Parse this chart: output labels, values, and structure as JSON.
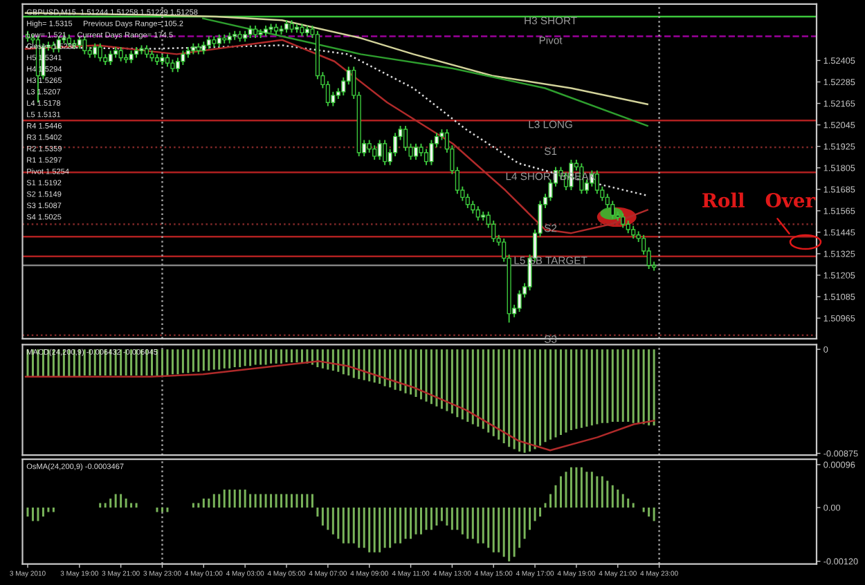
{
  "chart_data": [
    {
      "type": "candlestick",
      "x": [
        "2010-05-03T16:30",
        "2010-05-03T16:45",
        "2010-05-03T17:00",
        "2010-05-03T17:15",
        "2010-05-03T17:30",
        "2010-05-03T17:45",
        "2010-05-03T18:00",
        "2010-05-03T18:15",
        "2010-05-03T18:30",
        "2010-05-03T18:45",
        "2010-05-03T19:00",
        "2010-05-03T19:15",
        "2010-05-03T19:30",
        "2010-05-03T19:45",
        "2010-05-03T20:00",
        "2010-05-03T20:15",
        "2010-05-03T20:30",
        "2010-05-03T20:45",
        "2010-05-03T21:00",
        "2010-05-03T21:15",
        "2010-05-03T21:30",
        "2010-05-03T21:45",
        "2010-05-03T22:00",
        "2010-05-03T22:15",
        "2010-05-03T22:30",
        "2010-05-03T22:45",
        "2010-05-03T23:00",
        "2010-05-03T23:15",
        "2010-05-03T23:30",
        "2010-05-03T23:45",
        "2010-05-04T00:00",
        "2010-05-04T00:15",
        "2010-05-04T00:30",
        "2010-05-04T00:45",
        "2010-05-04T01:00",
        "2010-05-04T01:15",
        "2010-05-04T01:30",
        "2010-05-04T01:45",
        "2010-05-04T02:00",
        "2010-05-04T02:15",
        "2010-05-04T02:30",
        "2010-05-04T02:45",
        "2010-05-04T03:00",
        "2010-05-04T03:15",
        "2010-05-04T03:30",
        "2010-05-04T03:45",
        "2010-05-04T04:00",
        "2010-05-04T04:15",
        "2010-05-04T04:30",
        "2010-05-04T04:45",
        "2010-05-04T05:00",
        "2010-05-04T05:15",
        "2010-05-04T05:30",
        "2010-05-04T05:45",
        "2010-05-04T06:00",
        "2010-05-04T06:15",
        "2010-05-04T06:30",
        "2010-05-04T06:45",
        "2010-05-04T07:00",
        "2010-05-04T07:15",
        "2010-05-04T07:30",
        "2010-05-04T07:45",
        "2010-05-04T08:00",
        "2010-05-04T08:15",
        "2010-05-04T08:30",
        "2010-05-04T08:45",
        "2010-05-04T09:00",
        "2010-05-04T09:15",
        "2010-05-04T09:30",
        "2010-05-04T09:45",
        "2010-05-04T10:00",
        "2010-05-04T10:15",
        "2010-05-04T10:30",
        "2010-05-04T10:45",
        "2010-05-04T11:00",
        "2010-05-04T11:15",
        "2010-05-04T11:30",
        "2010-05-04T11:45",
        "2010-05-04T12:00",
        "2010-05-04T12:15",
        "2010-05-04T12:30",
        "2010-05-04T12:45",
        "2010-05-04T13:00",
        "2010-05-04T13:15",
        "2010-05-04T13:30",
        "2010-05-04T13:45",
        "2010-05-04T14:00",
        "2010-05-04T14:15",
        "2010-05-04T14:30",
        "2010-05-04T14:45",
        "2010-05-04T15:00",
        "2010-05-04T15:15",
        "2010-05-04T15:30",
        "2010-05-04T15:45",
        "2010-05-04T16:00",
        "2010-05-04T16:15",
        "2010-05-04T16:30",
        "2010-05-04T16:45",
        "2010-05-04T17:00",
        "2010-05-04T17:15",
        "2010-05-04T17:30",
        "2010-05-04T17:45",
        "2010-05-04T18:00",
        "2010-05-04T18:15",
        "2010-05-04T18:30",
        "2010-05-04T18:45",
        "2010-05-04T19:00",
        "2010-05-04T19:15",
        "2010-05-04T19:30",
        "2010-05-04T19:45",
        "2010-05-04T20:00",
        "2010-05-04T20:15",
        "2010-05-04T20:30",
        "2010-05-04T20:45",
        "2010-05-04T21:00",
        "2010-05-04T21:15",
        "2010-05-04T21:30",
        "2010-05-04T21:45",
        "2010-05-04T22:00",
        "2010-05-04T22:15",
        "2010-05-04T22:30",
        "2010-05-04T22:45"
      ],
      "ohlc": [
        [
          1.5255,
          1.5257,
          1.5251,
          1.5253
        ],
        [
          1.5253,
          1.5255,
          1.525,
          1.5252
        ],
        [
          1.5252,
          1.5254,
          1.5217,
          1.5232
        ],
        [
          1.5232,
          1.525,
          1.523,
          1.5248
        ],
        [
          1.5248,
          1.5251,
          1.5246,
          1.5249
        ],
        [
          1.5249,
          1.5251,
          1.5245,
          1.5247
        ],
        [
          1.5247,
          1.5254,
          1.5245,
          1.5252
        ],
        [
          1.5252,
          1.5255,
          1.525,
          1.5253
        ],
        [
          1.5253,
          1.5255,
          1.5248,
          1.525
        ],
        [
          1.525,
          1.5252,
          1.5247,
          1.5249
        ],
        [
          1.5249,
          1.5254,
          1.5247,
          1.5252
        ],
        [
          1.5252,
          1.5254,
          1.5244,
          1.5246
        ],
        [
          1.5246,
          1.5248,
          1.5242,
          1.5244
        ],
        [
          1.5244,
          1.525,
          1.5242,
          1.5248
        ],
        [
          1.5248,
          1.525,
          1.524,
          1.5242
        ],
        [
          1.5242,
          1.5244,
          1.5238,
          1.524
        ],
        [
          1.524,
          1.5246,
          1.5238,
          1.5244
        ],
        [
          1.5244,
          1.5248,
          1.5242,
          1.5246
        ],
        [
          1.5246,
          1.5248,
          1.524,
          1.5242
        ],
        [
          1.5242,
          1.5244,
          1.5239,
          1.5241
        ],
        [
          1.5241,
          1.5246,
          1.5239,
          1.5244
        ],
        [
          1.5244,
          1.5248,
          1.5242,
          1.5246
        ],
        [
          1.5246,
          1.5249,
          1.5244,
          1.5247
        ],
        [
          1.5247,
          1.5249,
          1.5242,
          1.5244
        ],
        [
          1.5244,
          1.5246,
          1.524,
          1.5242
        ],
        [
          1.5242,
          1.5244,
          1.5238,
          1.524
        ],
        [
          1.524,
          1.5244,
          1.5238,
          1.5242
        ],
        [
          1.5242,
          1.5244,
          1.5237,
          1.5239
        ],
        [
          1.5239,
          1.5241,
          1.5234,
          1.5236
        ],
        [
          1.5236,
          1.5242,
          1.5234,
          1.524
        ],
        [
          1.524,
          1.5246,
          1.5238,
          1.5244
        ],
        [
          1.5244,
          1.5248,
          1.5242,
          1.5246
        ],
        [
          1.5246,
          1.525,
          1.5244,
          1.5248
        ],
        [
          1.5248,
          1.525,
          1.5244,
          1.5246
        ],
        [
          1.5246,
          1.5251,
          1.5244,
          1.5249
        ],
        [
          1.5249,
          1.5254,
          1.5247,
          1.5252
        ],
        [
          1.5252,
          1.5254,
          1.5248,
          1.525
        ],
        [
          1.525,
          1.5255,
          1.5248,
          1.5253
        ],
        [
          1.5253,
          1.5255,
          1.525,
          1.5252
        ],
        [
          1.5252,
          1.5256,
          1.525,
          1.5254
        ],
        [
          1.5254,
          1.5257,
          1.5252,
          1.5255
        ],
        [
          1.5255,
          1.5257,
          1.5251,
          1.5253
        ],
        [
          1.5253,
          1.5257,
          1.5251,
          1.5255
        ],
        [
          1.5255,
          1.526,
          1.5253,
          1.5258
        ],
        [
          1.5258,
          1.526,
          1.5253,
          1.5255
        ],
        [
          1.5255,
          1.5258,
          1.5253,
          1.5256
        ],
        [
          1.5256,
          1.526,
          1.5254,
          1.5258
        ],
        [
          1.5258,
          1.5261,
          1.5256,
          1.5259
        ],
        [
          1.5259,
          1.5261,
          1.5255,
          1.5257
        ],
        [
          1.5257,
          1.526,
          1.5255,
          1.5258
        ],
        [
          1.5258,
          1.5263,
          1.5256,
          1.5261
        ],
        [
          1.5261,
          1.5263,
          1.5256,
          1.5258
        ],
        [
          1.5258,
          1.5261,
          1.5256,
          1.5259
        ],
        [
          1.5259,
          1.5261,
          1.5254,
          1.5256
        ],
        [
          1.5256,
          1.526,
          1.5254,
          1.5258
        ],
        [
          1.5258,
          1.526,
          1.5253,
          1.5255
        ],
        [
          1.5255,
          1.5257,
          1.523,
          1.5232
        ],
        [
          1.5232,
          1.5234,
          1.5225,
          1.5227
        ],
        [
          1.5227,
          1.5229,
          1.5215,
          1.5217
        ],
        [
          1.5217,
          1.5223,
          1.5215,
          1.5221
        ],
        [
          1.5221,
          1.5225,
          1.5219,
          1.5223
        ],
        [
          1.5223,
          1.5231,
          1.5221,
          1.5229
        ],
        [
          1.5229,
          1.5237,
          1.5227,
          1.5235
        ],
        [
          1.5235,
          1.5237,
          1.5219,
          1.5221
        ],
        [
          1.5221,
          1.5223,
          1.5187,
          1.5189
        ],
        [
          1.5189,
          1.5196,
          1.5187,
          1.5194
        ],
        [
          1.5194,
          1.5196,
          1.5189,
          1.5191
        ],
        [
          1.5191,
          1.5193,
          1.5185,
          1.5187
        ],
        [
          1.5187,
          1.5196,
          1.5185,
          1.5194
        ],
        [
          1.5194,
          1.5196,
          1.5182,
          1.5184
        ],
        [
          1.5184,
          1.5191,
          1.5182,
          1.5189
        ],
        [
          1.5189,
          1.52,
          1.5187,
          1.5198
        ],
        [
          1.5198,
          1.5204,
          1.5196,
          1.5202
        ],
        [
          1.5202,
          1.5204,
          1.519,
          1.5192
        ],
        [
          1.5192,
          1.5194,
          1.5185,
          1.5187
        ],
        [
          1.5187,
          1.5194,
          1.5185,
          1.5192
        ],
        [
          1.5192,
          1.5194,
          1.5187,
          1.5189
        ],
        [
          1.5189,
          1.5191,
          1.5182,
          1.5184
        ],
        [
          1.5184,
          1.5196,
          1.5182,
          1.5194
        ],
        [
          1.5194,
          1.52,
          1.5192,
          1.5198
        ],
        [
          1.5198,
          1.5202,
          1.5196,
          1.52
        ],
        [
          1.52,
          1.5202,
          1.5189,
          1.5191
        ],
        [
          1.5191,
          1.5193,
          1.5177,
          1.5179
        ],
        [
          1.5179,
          1.5181,
          1.5166,
          1.5168
        ],
        [
          1.5168,
          1.517,
          1.5162,
          1.5164
        ],
        [
          1.5164,
          1.5166,
          1.5158,
          1.516
        ],
        [
          1.516,
          1.5162,
          1.5155,
          1.5157
        ],
        [
          1.5157,
          1.5159,
          1.5151,
          1.5153
        ],
        [
          1.5153,
          1.5156,
          1.5151,
          1.5154
        ],
        [
          1.5154,
          1.5156,
          1.5147,
          1.5149
        ],
        [
          1.5149,
          1.5151,
          1.5139,
          1.5141
        ],
        [
          1.5141,
          1.5143,
          1.5137,
          1.5139
        ],
        [
          1.5139,
          1.5141,
          1.5128,
          1.513
        ],
        [
          1.513,
          1.5132,
          1.5094,
          1.5099
        ],
        [
          1.5099,
          1.5104,
          1.5097,
          1.5102
        ],
        [
          1.5102,
          1.5112,
          1.51,
          1.511
        ],
        [
          1.511,
          1.5116,
          1.5108,
          1.5114
        ],
        [
          1.5114,
          1.5132,
          1.5112,
          1.513
        ],
        [
          1.513,
          1.5146,
          1.5128,
          1.5144
        ],
        [
          1.5144,
          1.5162,
          1.5142,
          1.516
        ],
        [
          1.516,
          1.5166,
          1.5158,
          1.5164
        ],
        [
          1.5164,
          1.5174,
          1.5162,
          1.5172
        ],
        [
          1.5172,
          1.5181,
          1.517,
          1.5179
        ],
        [
          1.5179,
          1.5181,
          1.5174,
          1.5176
        ],
        [
          1.5176,
          1.5178,
          1.5168,
          1.517
        ],
        [
          1.517,
          1.5185,
          1.5168,
          1.5183
        ],
        [
          1.5183,
          1.5185,
          1.5179,
          1.5181
        ],
        [
          1.5181,
          1.5183,
          1.5166,
          1.5168
        ],
        [
          1.5168,
          1.5174,
          1.5166,
          1.5172
        ],
        [
          1.5172,
          1.5179,
          1.517,
          1.5177
        ],
        [
          1.5177,
          1.5179,
          1.5166,
          1.5168
        ],
        [
          1.5168,
          1.517,
          1.5162,
          1.5164
        ],
        [
          1.5164,
          1.5166,
          1.5158,
          1.516
        ],
        [
          1.516,
          1.5162,
          1.5152,
          1.5154
        ],
        [
          1.5154,
          1.5156,
          1.5151,
          1.5153
        ],
        [
          1.5153,
          1.5155,
          1.5147,
          1.5149
        ],
        [
          1.5149,
          1.5151,
          1.5144,
          1.5146
        ],
        [
          1.5146,
          1.5148,
          1.5141,
          1.5143
        ],
        [
          1.5143,
          1.5145,
          1.5139,
          1.5141
        ],
        [
          1.5141,
          1.5143,
          1.5132,
          1.5134
        ],
        [
          1.5134,
          1.5136,
          1.5124,
          1.5126
        ],
        [
          1.5126,
          1.5128,
          1.5123,
          1.5125
        ]
      ],
      "series": [
        {
          "type": "line",
          "color": "#d2d29a",
          "x": [
            "2010-05-03T16:24",
            "2010-05-03T22:26",
            "2010-05-04T01:36",
            "2010-05-04T04:47",
            "2010-05-04T08:35",
            "2010-05-04T11:08",
            "2010-05-04T14:56",
            "2010-05-04T18:45",
            "2010-05-04T22:26"
          ],
          "values": [
            1.5267,
            1.5266,
            1.5265,
            1.5263,
            1.5253,
            1.5244,
            1.5232,
            1.5225,
            1.5216
          ]
        },
        {
          "type": "line",
          "color": "#2e9e2e",
          "x": [
            "2010-05-04T00:58",
            "2010-05-04T04:47",
            "2010-05-04T08:35",
            "2010-05-04T13:02",
            "2010-05-04T17:29",
            "2010-05-04T22:26"
          ],
          "values": [
            1.5264,
            1.5254,
            1.5244,
            1.5236,
            1.5225,
            1.5204
          ]
        },
        {
          "type": "line",
          "color": "#dcdcdc",
          "line_style": "dotted",
          "x": [
            "2010-05-03T16:24",
            "2010-05-03T22:26",
            "2010-05-04T04:47",
            "2010-05-04T07:57",
            "2010-05-04T11:08",
            "2010-05-04T13:40",
            "2010-05-04T16:13",
            "2010-05-04T18:45",
            "2010-05-04T22:26"
          ],
          "values": [
            1.5248,
            1.5247,
            1.5249,
            1.5244,
            1.5225,
            1.5202,
            1.5183,
            1.5175,
            1.5165
          ]
        },
        {
          "type": "line",
          "color": "#b02a2a",
          "x": [
            "2010-05-03T16:24",
            "2010-05-03T19:53",
            "2010-05-03T23:42",
            "2010-05-04T04:47",
            "2010-05-04T07:19",
            "2010-05-04T09:52",
            "2010-05-04T13:02",
            "2010-05-04T15:34",
            "2010-05-04T17:29",
            "2010-05-04T18:45",
            "2010-05-04T20:39",
            "2010-05-04T22:26"
          ],
          "values": [
            1.5247,
            1.5249,
            1.5244,
            1.5252,
            1.524,
            1.5217,
            1.5194,
            1.5168,
            1.5146,
            1.5144,
            1.5149,
            1.5157
          ]
        }
      ],
      "ref_lines": [
        {
          "axis": "y",
          "value": 1.5265,
          "label": "H3 SHORT",
          "color": "#3cc83c"
        },
        {
          "axis": "y",
          "value": 1.5254,
          "label": "Pivot",
          "color": "#9a009a",
          "line_style": "dashed"
        },
        {
          "axis": "y",
          "value": 1.5207,
          "label": "L3 LONG",
          "color": "#b02020"
        },
        {
          "axis": "y",
          "value": 1.5192,
          "label": "S1",
          "color": "#802828",
          "line_style": "dotted"
        },
        {
          "axis": "y",
          "value": 1.5178,
          "label": "L4 SHORT BREAK",
          "color": "#b02020"
        },
        {
          "axis": "y",
          "value": 1.5149,
          "label": "S2",
          "color": "#802828",
          "line_style": "dotted"
        },
        {
          "axis": "y",
          "value": 1.5142,
          "color": "#b02020"
        },
        {
          "axis": "y",
          "value": 1.5131,
          "label": "L5 SB TARGET",
          "color": "#b02020"
        },
        {
          "axis": "y",
          "value": 1.5126,
          "color": "#808080"
        },
        {
          "axis": "y",
          "value": 1.5087,
          "label": "S3",
          "color": "#802828",
          "line_style": "dotted"
        },
        {
          "axis": "x",
          "value": "2010-05-03T23:00",
          "color": "#a0a0a0",
          "line_style": "dotted"
        },
        {
          "axis": "x",
          "value": "2010-05-04T23:00",
          "color": "#a0a0a0",
          "line_style": "dotted"
        }
      ],
      "annotations": [
        "GBPUSD,M15  1.51244 1.51258 1.51229 1.51258",
        "High= 1.5315     Previous Days Range= 105.2",
        "Low= 1.521     Current Days Range= 174.5",
        "Close= 1.5236",
        "H5 1.5341",
        "H4 1.5294",
        "H3 1.5265",
        "L3 1.5207",
        "L4 1.5178",
        "L5 1.5131",
        "R4 1.5446",
        "R3 1.5402",
        "R2 1.5359",
        "R1 1.5297",
        "Pivot 1.5254",
        "S1 1.5192",
        "S2 1.5149",
        "S3 1.5087",
        "S4 1.5025",
        "Roll   Over"
      ],
      "xlim": [
        "2010-05-03T16:15",
        "2010-05-05T06:36"
      ],
      "ylim": [
        1.5085,
        1.5272
      ],
      "yticks": [
        1.50965,
        1.51085,
        1.51205,
        1.51325,
        1.51445,
        1.51565,
        1.51685,
        1.51805,
        1.51925,
        1.52045,
        1.52165,
        1.52285,
        1.52405
      ],
      "tick_labels": "y",
      "legend": false,
      "grid": false
    },
    {
      "type": "bar",
      "x": [
        "2010-05-03T16:30",
        "2010-05-03T16:45",
        "2010-05-03T17:00",
        "2010-05-03T17:15",
        "2010-05-03T17:30",
        "2010-05-03T17:45",
        "2010-05-03T18:00",
        "2010-05-03T18:15",
        "2010-05-03T18:30",
        "2010-05-03T18:45",
        "2010-05-03T19:00",
        "2010-05-03T19:15",
        "2010-05-03T19:30",
        "2010-05-03T19:45",
        "2010-05-03T20:00",
        "2010-05-03T20:15",
        "2010-05-03T20:30",
        "2010-05-03T20:45",
        "2010-05-03T21:00",
        "2010-05-03T21:15",
        "2010-05-03T21:30",
        "2010-05-03T21:45",
        "2010-05-03T22:00",
        "2010-05-03T22:15",
        "2010-05-03T22:30",
        "2010-05-03T22:45",
        "2010-05-03T23:00",
        "2010-05-03T23:15",
        "2010-05-03T23:30",
        "2010-05-03T23:45",
        "2010-05-04T00:00",
        "2010-05-04T00:15",
        "2010-05-04T00:30",
        "2010-05-04T00:45",
        "2010-05-04T01:00",
        "2010-05-04T01:15",
        "2010-05-04T01:30",
        "2010-05-04T01:45",
        "2010-05-04T02:00",
        "2010-05-04T02:15",
        "2010-05-04T02:30",
        "2010-05-04T02:45",
        "2010-05-04T03:00",
        "2010-05-04T03:15",
        "2010-05-04T03:30",
        "2010-05-04T03:45",
        "2010-05-04T04:00",
        "2010-05-04T04:15",
        "2010-05-04T04:30",
        "2010-05-04T04:45",
        "2010-05-04T05:00",
        "2010-05-04T05:15",
        "2010-05-04T05:30",
        "2010-05-04T05:45",
        "2010-05-04T06:00",
        "2010-05-04T06:15",
        "2010-05-04T06:30",
        "2010-05-04T06:45",
        "2010-05-04T07:00",
        "2010-05-04T07:15",
        "2010-05-04T07:30",
        "2010-05-04T07:45",
        "2010-05-04T08:00",
        "2010-05-04T08:15",
        "2010-05-04T08:30",
        "2010-05-04T08:45",
        "2010-05-04T09:00",
        "2010-05-04T09:15",
        "2010-05-04T09:30",
        "2010-05-04T09:45",
        "2010-05-04T10:00",
        "2010-05-04T10:15",
        "2010-05-04T10:30",
        "2010-05-04T10:45",
        "2010-05-04T11:00",
        "2010-05-04T11:15",
        "2010-05-04T11:30",
        "2010-05-04T11:45",
        "2010-05-04T12:00",
        "2010-05-04T12:15",
        "2010-05-04T12:30",
        "2010-05-04T12:45",
        "2010-05-04T13:00",
        "2010-05-04T13:15",
        "2010-05-04T13:30",
        "2010-05-04T13:45",
        "2010-05-04T14:00",
        "2010-05-04T14:15",
        "2010-05-04T14:30",
        "2010-05-04T14:45",
        "2010-05-04T15:00",
        "2010-05-04T15:15",
        "2010-05-04T15:30",
        "2010-05-04T15:45",
        "2010-05-04T16:00",
        "2010-05-04T16:15",
        "2010-05-04T16:30",
        "2010-05-04T16:45",
        "2010-05-04T17:00",
        "2010-05-04T17:15",
        "2010-05-04T17:30",
        "2010-05-04T17:45",
        "2010-05-04T18:00",
        "2010-05-04T18:15",
        "2010-05-04T18:30",
        "2010-05-04T18:45",
        "2010-05-04T19:00",
        "2010-05-04T19:15",
        "2010-05-04T19:30",
        "2010-05-04T19:45",
        "2010-05-04T20:00",
        "2010-05-04T20:15",
        "2010-05-04T20:30",
        "2010-05-04T20:45",
        "2010-05-04T21:00",
        "2010-05-04T21:15",
        "2010-05-04T21:30",
        "2010-05-04T21:45",
        "2010-05-04T22:00",
        "2010-05-04T22:15",
        "2010-05-04T22:30",
        "2010-05-04T22:45"
      ],
      "series": [
        {
          "type": "bar",
          "color": "#79b45a",
          "values": [
            -0.0023,
            -0.0023,
            -0.0023,
            -0.0023,
            -0.0023,
            -0.0023,
            -0.0023,
            -0.0023,
            -0.0023,
            -0.0023,
            -0.0023,
            -0.0022,
            -0.0022,
            -0.0022,
            -0.0022,
            -0.0022,
            -0.0022,
            -0.0022,
            -0.0022,
            -0.0022,
            -0.0022,
            -0.0022,
            -0.0022,
            -0.0022,
            -0.0022,
            -0.0022,
            -0.0022,
            -0.0022,
            -0.0021,
            -0.0021,
            -0.002,
            -0.002,
            -0.0019,
            -0.0019,
            -0.0018,
            -0.0018,
            -0.0017,
            -0.0017,
            -0.0016,
            -0.0016,
            -0.0015,
            -0.0015,
            -0.0014,
            -0.0014,
            -0.0013,
            -0.0013,
            -0.0013,
            -0.0012,
            -0.0012,
            -0.0012,
            -0.0011,
            -0.0011,
            -0.0011,
            -0.0012,
            -0.0012,
            -0.0013,
            -0.0015,
            -0.0016,
            -0.0017,
            -0.0018,
            -0.0019,
            -0.0021,
            -0.0022,
            -0.0024,
            -0.0025,
            -0.0026,
            -0.0027,
            -0.0028,
            -0.0029,
            -0.0031,
            -0.0032,
            -0.0034,
            -0.0035,
            -0.0037,
            -0.0038,
            -0.004,
            -0.0042,
            -0.0044,
            -0.0046,
            -0.0048,
            -0.005,
            -0.0052,
            -0.0054,
            -0.0057,
            -0.0059,
            -0.0061,
            -0.0063,
            -0.0065,
            -0.0067,
            -0.007,
            -0.0073,
            -0.0076,
            -0.0079,
            -0.0082,
            -0.0084,
            -0.0086,
            -0.0087,
            -0.0086,
            -0.0084,
            -0.0081,
            -0.0078,
            -0.0076,
            -0.0074,
            -0.0072,
            -0.007,
            -0.0068,
            -0.0067,
            -0.0066,
            -0.0065,
            -0.0064,
            -0.0063,
            -0.0062,
            -0.0062,
            -0.0061,
            -0.0061,
            -0.0061,
            -0.0061,
            -0.0062,
            -0.0062,
            -0.0063,
            -0.0064,
            -0.0064
          ]
        },
        {
          "type": "line",
          "color": "#b02a2a",
          "x": [
            "2010-05-03T16:24",
            "2010-05-03T22:26",
            "2010-05-04T00:58",
            "2010-05-04T06:34",
            "2010-05-04T07:57",
            "2010-05-04T11:08",
            "2010-05-04T13:40",
            "2010-05-04T16:13",
            "2010-05-04T17:44",
            "2010-05-04T20:01",
            "2010-05-04T21:47",
            "2010-05-04T22:45"
          ],
          "values": [
            -0.0023,
            -0.0023,
            -0.0021,
            -0.001,
            -0.0014,
            -0.0032,
            -0.0051,
            -0.0077,
            -0.0085,
            -0.0074,
            -0.0063,
            -0.006
          ]
        }
      ],
      "ref_lines": [
        {
          "axis": "x",
          "value": "2010-05-03T23:00",
          "color": "#a0a0a0",
          "line_style": "dotted"
        },
        {
          "axis": "x",
          "value": "2010-05-04T23:00",
          "color": "#a0a0a0",
          "line_style": "dotted"
        }
      ],
      "annotations": [
        "MACD(24,200,9) -0.006432 -0.006045"
      ],
      "xlim": [
        "2010-05-03T16:15",
        "2010-05-05T06:36"
      ],
      "ylim": [
        -0.0089,
        0.0004
      ],
      "yticks": [
        {
          "value": 0,
          "label": "0"
        },
        {
          "value": -0.00875,
          "label": "-0.00875"
        }
      ],
      "tick_labels": "y",
      "legend": false,
      "grid": false
    },
    {
      "type": "bar",
      "x": [
        "2010-05-03T16:30",
        "2010-05-03T16:45",
        "2010-05-03T17:00",
        "2010-05-03T17:15",
        "2010-05-03T17:30",
        "2010-05-03T17:45",
        "2010-05-03T18:00",
        "2010-05-03T18:15",
        "2010-05-03T18:30",
        "2010-05-03T18:45",
        "2010-05-03T19:00",
        "2010-05-03T19:15",
        "2010-05-03T19:30",
        "2010-05-03T19:45",
        "2010-05-03T20:00",
        "2010-05-03T20:15",
        "2010-05-03T20:30",
        "2010-05-03T20:45",
        "2010-05-03T21:00",
        "2010-05-03T21:15",
        "2010-05-03T21:30",
        "2010-05-03T21:45",
        "2010-05-03T22:00",
        "2010-05-03T22:15",
        "2010-05-03T22:30",
        "2010-05-03T22:45",
        "2010-05-03T23:00",
        "2010-05-03T23:15",
        "2010-05-03T23:30",
        "2010-05-03T23:45",
        "2010-05-04T00:00",
        "2010-05-04T00:15",
        "2010-05-04T00:30",
        "2010-05-04T00:45",
        "2010-05-04T01:00",
        "2010-05-04T01:15",
        "2010-05-04T01:30",
        "2010-05-04T01:45",
        "2010-05-04T02:00",
        "2010-05-04T02:15",
        "2010-05-04T02:30",
        "2010-05-04T02:45",
        "2010-05-04T03:00",
        "2010-05-04T03:15",
        "2010-05-04T03:30",
        "2010-05-04T03:45",
        "2010-05-04T04:00",
        "2010-05-04T04:15",
        "2010-05-04T04:30",
        "2010-05-04T04:45",
        "2010-05-04T05:00",
        "2010-05-04T05:15",
        "2010-05-04T05:30",
        "2010-05-04T05:45",
        "2010-05-04T06:00",
        "2010-05-04T06:15",
        "2010-05-04T06:30",
        "2010-05-04T06:45",
        "2010-05-04T07:00",
        "2010-05-04T07:15",
        "2010-05-04T07:30",
        "2010-05-04T07:45",
        "2010-05-04T08:00",
        "2010-05-04T08:15",
        "2010-05-04T08:30",
        "2010-05-04T08:45",
        "2010-05-04T09:00",
        "2010-05-04T09:15",
        "2010-05-04T09:30",
        "2010-05-04T09:45",
        "2010-05-04T10:00",
        "2010-05-04T10:15",
        "2010-05-04T10:30",
        "2010-05-04T10:45",
        "2010-05-04T11:00",
        "2010-05-04T11:15",
        "2010-05-04T11:30",
        "2010-05-04T11:45",
        "2010-05-04T12:00",
        "2010-05-04T12:15",
        "2010-05-04T12:30",
        "2010-05-04T12:45",
        "2010-05-04T13:00",
        "2010-05-04T13:15",
        "2010-05-04T13:30",
        "2010-05-04T13:45",
        "2010-05-04T14:00",
        "2010-05-04T14:15",
        "2010-05-04T14:30",
        "2010-05-04T14:45",
        "2010-05-04T15:00",
        "2010-05-04T15:15",
        "2010-05-04T15:30",
        "2010-05-04T15:45",
        "2010-05-04T16:00",
        "2010-05-04T16:15",
        "2010-05-04T16:30",
        "2010-05-04T16:45",
        "2010-05-04T17:00",
        "2010-05-04T17:15",
        "2010-05-04T17:30",
        "2010-05-04T17:45",
        "2010-05-04T18:00",
        "2010-05-04T18:15",
        "2010-05-04T18:30",
        "2010-05-04T18:45",
        "2010-05-04T19:00",
        "2010-05-04T19:15",
        "2010-05-04T19:30",
        "2010-05-04T19:45",
        "2010-05-04T20:00",
        "2010-05-04T20:15",
        "2010-05-04T20:30",
        "2010-05-04T20:45",
        "2010-05-04T21:00",
        "2010-05-04T21:15",
        "2010-05-04T21:30",
        "2010-05-04T21:45",
        "2010-05-04T22:00",
        "2010-05-04T22:15",
        "2010-05-04T22:30",
        "2010-05-04T22:45"
      ],
      "series": [
        {
          "type": "bar",
          "color": "#79b45a",
          "values": [
            -0.0002,
            -0.0003,
            -0.0003,
            -0.0002,
            -0.0001,
            -0.0001,
            0,
            0,
            0,
            0,
            0,
            0,
            0,
            0,
            0.0001,
            0.0001,
            0.0002,
            0.0003,
            0.0003,
            0.0002,
            0.0001,
            0.0001,
            0,
            0,
            0,
            -0.0001,
            -0.0001,
            -0.0001,
            0,
            0,
            0,
            0,
            0.0001,
            0.0001,
            0.0002,
            0.0002,
            0.0003,
            0.0003,
            0.0004,
            0.0004,
            0.0004,
            0.0004,
            0.0004,
            0.0003,
            0.0003,
            0.0003,
            0.0003,
            0.0003,
            0.0003,
            0.0003,
            0.0003,
            0.0003,
            0.0003,
            0.0003,
            0.0003,
            0.0003,
            -0.0002,
            -0.0004,
            -0.0005,
            -0.0006,
            -0.0007,
            -0.0008,
            -0.0008,
            -0.0008,
            -0.0009,
            -0.0009,
            -0.001,
            -0.001,
            -0.001,
            -0.0009,
            -0.0009,
            -0.0008,
            -0.0008,
            -0.0007,
            -0.0007,
            -0.0006,
            -0.0006,
            -0.0005,
            -0.0005,
            -0.0004,
            -0.0003,
            -0.0004,
            -0.0005,
            -0.0005,
            -0.0006,
            -0.0007,
            -0.0007,
            -0.0008,
            -0.0008,
            -0.0009,
            -0.001,
            -0.001,
            -0.0011,
            -0.0012,
            -0.0011,
            -0.0009,
            -0.0007,
            -0.0005,
            -0.0003,
            -0.0002,
            0.0001,
            0.0003,
            0.0005,
            0.0007,
            0.0008,
            0.0009,
            0.0009,
            0.0009,
            0.0008,
            0.0008,
            0.0007,
            0.0007,
            0.0006,
            0.0005,
            0.0004,
            0.0003,
            0.0002,
            0.0001,
            0,
            -0.0001,
            -0.0002,
            -0.0003
          ]
        }
      ],
      "ref_lines": [
        {
          "axis": "x",
          "value": "2010-05-03T23:00",
          "color": "#a0a0a0",
          "line_style": "dotted"
        },
        {
          "axis": "x",
          "value": "2010-05-04T23:00",
          "color": "#a0a0a0",
          "line_style": "dotted"
        }
      ],
      "annotations": [
        "OsMA(24,200,9) -0.0003467"
      ],
      "xlim": [
        "2010-05-03T16:15",
        "2010-05-05T06:36"
      ],
      "ylim": [
        -0.00126,
        0.00108
      ],
      "xticks": [
        {
          "value": "2010-05-03T16:30",
          "label": "3 May 2010"
        },
        {
          "value": "2010-05-03T19:00",
          "label": "3 May 19:00"
        },
        {
          "value": "2010-05-03T21:00",
          "label": "3 May 21:00"
        },
        {
          "value": "2010-05-03T23:00",
          "label": "3 May 23:00"
        },
        {
          "value": "2010-05-04T01:00",
          "label": "4 May 01:00"
        },
        {
          "value": "2010-05-04T03:00",
          "label": "4 May 03:00"
        },
        {
          "value": "2010-05-04T05:00",
          "label": "4 May 05:00"
        },
        {
          "value": "2010-05-04T07:00",
          "label": "4 May 07:00"
        },
        {
          "value": "2010-05-04T09:00",
          "label": "4 May 09:00"
        },
        {
          "value": "2010-05-04T11:00",
          "label": "4 May 11:00"
        },
        {
          "value": "2010-05-04T13:00",
          "label": "4 May 13:00"
        },
        {
          "value": "2010-05-04T15:00",
          "label": "4 May 15:00"
        },
        {
          "value": "2010-05-04T17:00",
          "label": "4 May 17:00"
        },
        {
          "value": "2010-05-04T19:00",
          "label": "4 May 19:00"
        },
        {
          "value": "2010-05-04T21:00",
          "label": "4 May 21:00"
        },
        {
          "value": "2010-05-04T23:00",
          "label": "4 May 23:00"
        }
      ],
      "yticks": [
        {
          "value": 0.00096,
          "label": "0.00096"
        },
        {
          "value": 0,
          "label": "0.00"
        },
        {
          "value": -0.0012,
          "label": "-0.00120"
        }
      ],
      "legend": false,
      "grid": false
    }
  ]
}
